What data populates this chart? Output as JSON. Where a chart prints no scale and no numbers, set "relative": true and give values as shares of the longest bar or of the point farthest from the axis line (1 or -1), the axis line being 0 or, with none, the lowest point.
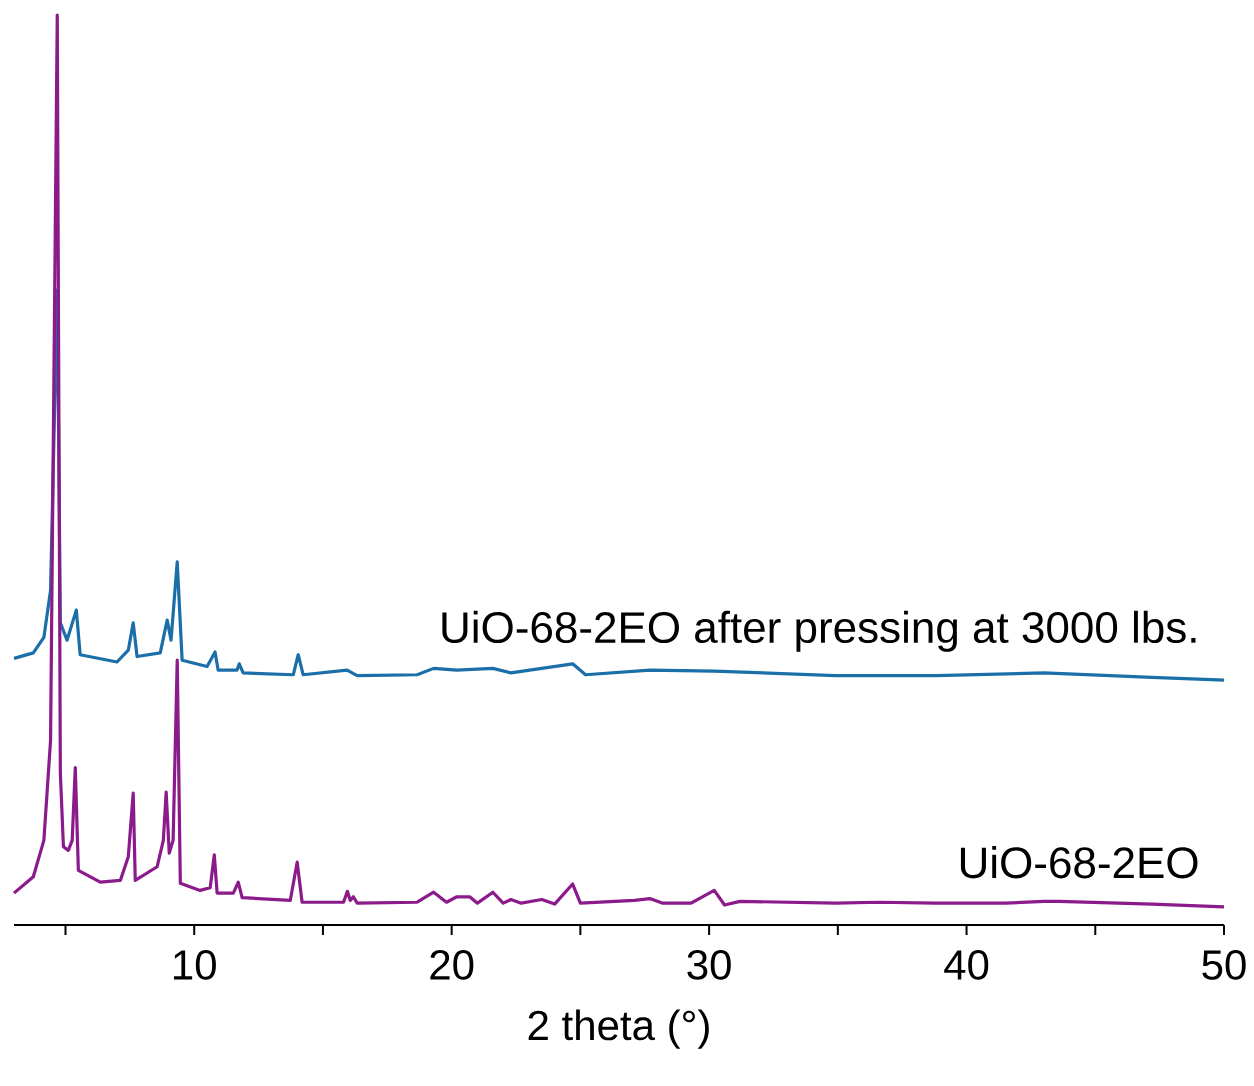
{
  "chart_data": {
    "type": "line",
    "xlabel": "2 theta (°)",
    "relative": true,
    "xlim": [
      3,
      50
    ],
    "xticks": [
      {
        "value": 5,
        "label": null
      },
      10,
      {
        "value": 15,
        "label": null
      },
      20,
      {
        "value": 25,
        "label": null
      },
      30,
      {
        "value": 35,
        "label": null
      },
      40,
      {
        "value": 45,
        "label": null
      },
      50
    ],
    "marker": "none",
    "grid": false,
    "series": [
      {
        "name": "UiO-68-2EO after pressing at 3000 lbs.",
        "color": "#1a6fa8",
        "x": [
          3.0,
          3.75,
          4.16,
          4.42,
          4.68,
          4.8,
          5.06,
          5.42,
          5.57,
          7.0,
          7.44,
          7.63,
          7.78,
          8.68,
          8.95,
          9.1,
          9.34,
          9.53,
          10.5,
          10.81,
          10.93,
          11.66,
          11.75,
          11.9,
          13.85,
          14.04,
          14.23,
          15.94,
          16.33,
          18.66,
          19.3,
          20.2,
          21.6,
          22.3,
          24.7,
          25.2,
          27.7,
          30.2,
          34.9,
          38.8,
          43.0,
          47.2,
          50
        ],
        "values": [
          0.293,
          0.299,
          0.316,
          0.368,
          0.698,
          0.332,
          0.313,
          0.346,
          0.297,
          0.289,
          0.302,
          0.332,
          0.295,
          0.299,
          0.335,
          0.313,
          0.399,
          0.291,
          0.284,
          0.3,
          0.28,
          0.28,
          0.287,
          0.277,
          0.275,
          0.297,
          0.275,
          0.28,
          0.274,
          0.275,
          0.282,
          0.28,
          0.282,
          0.277,
          0.287,
          0.275,
          0.28,
          0.279,
          0.274,
          0.274,
          0.277,
          0.272,
          0.269
        ]
      },
      {
        "name": "UiO-68-2EO",
        "color": "#8b1a8b",
        "x": [
          3.0,
          3.75,
          4.16,
          4.42,
          4.68,
          4.8,
          4.92,
          5.11,
          5.26,
          5.38,
          5.5,
          6.35,
          7.13,
          7.44,
          7.63,
          7.71,
          8.56,
          8.8,
          8.91,
          9.03,
          9.18,
          9.34,
          9.46,
          10.23,
          10.62,
          10.78,
          10.89,
          11.52,
          11.71,
          11.86,
          13.73,
          14.0,
          14.19,
          15.8,
          15.95,
          16.06,
          16.18,
          16.33,
          18.66,
          19.3,
          19.8,
          20.2,
          20.7,
          21.0,
          21.6,
          22.0,
          22.3,
          22.7,
          23.5,
          24.0,
          24.7,
          25.0,
          27.1,
          27.7,
          28.2,
          29.3,
          30.2,
          30.6,
          31.2,
          34.9,
          36.6,
          38.8,
          41.5,
          43.0,
          43.6,
          47.2,
          50
        ],
        "values": [
          0.035,
          0.053,
          0.093,
          0.203,
          1.0,
          0.167,
          0.086,
          0.082,
          0.093,
          0.173,
          0.06,
          0.047,
          0.049,
          0.075,
          0.145,
          0.049,
          0.064,
          0.093,
          0.146,
          0.079,
          0.093,
          0.291,
          0.046,
          0.038,
          0.041,
          0.077,
          0.035,
          0.035,
          0.047,
          0.03,
          0.027,
          0.069,
          0.025,
          0.025,
          0.037,
          0.027,
          0.031,
          0.024,
          0.025,
          0.036,
          0.025,
          0.031,
          0.031,
          0.024,
          0.036,
          0.024,
          0.028,
          0.024,
          0.028,
          0.023,
          0.045,
          0.024,
          0.027,
          0.029,
          0.024,
          0.024,
          0.038,
          0.022,
          0.026,
          0.024,
          0.025,
          0.024,
          0.024,
          0.026,
          0.026,
          0.023,
          0.02
        ]
      }
    ]
  }
}
